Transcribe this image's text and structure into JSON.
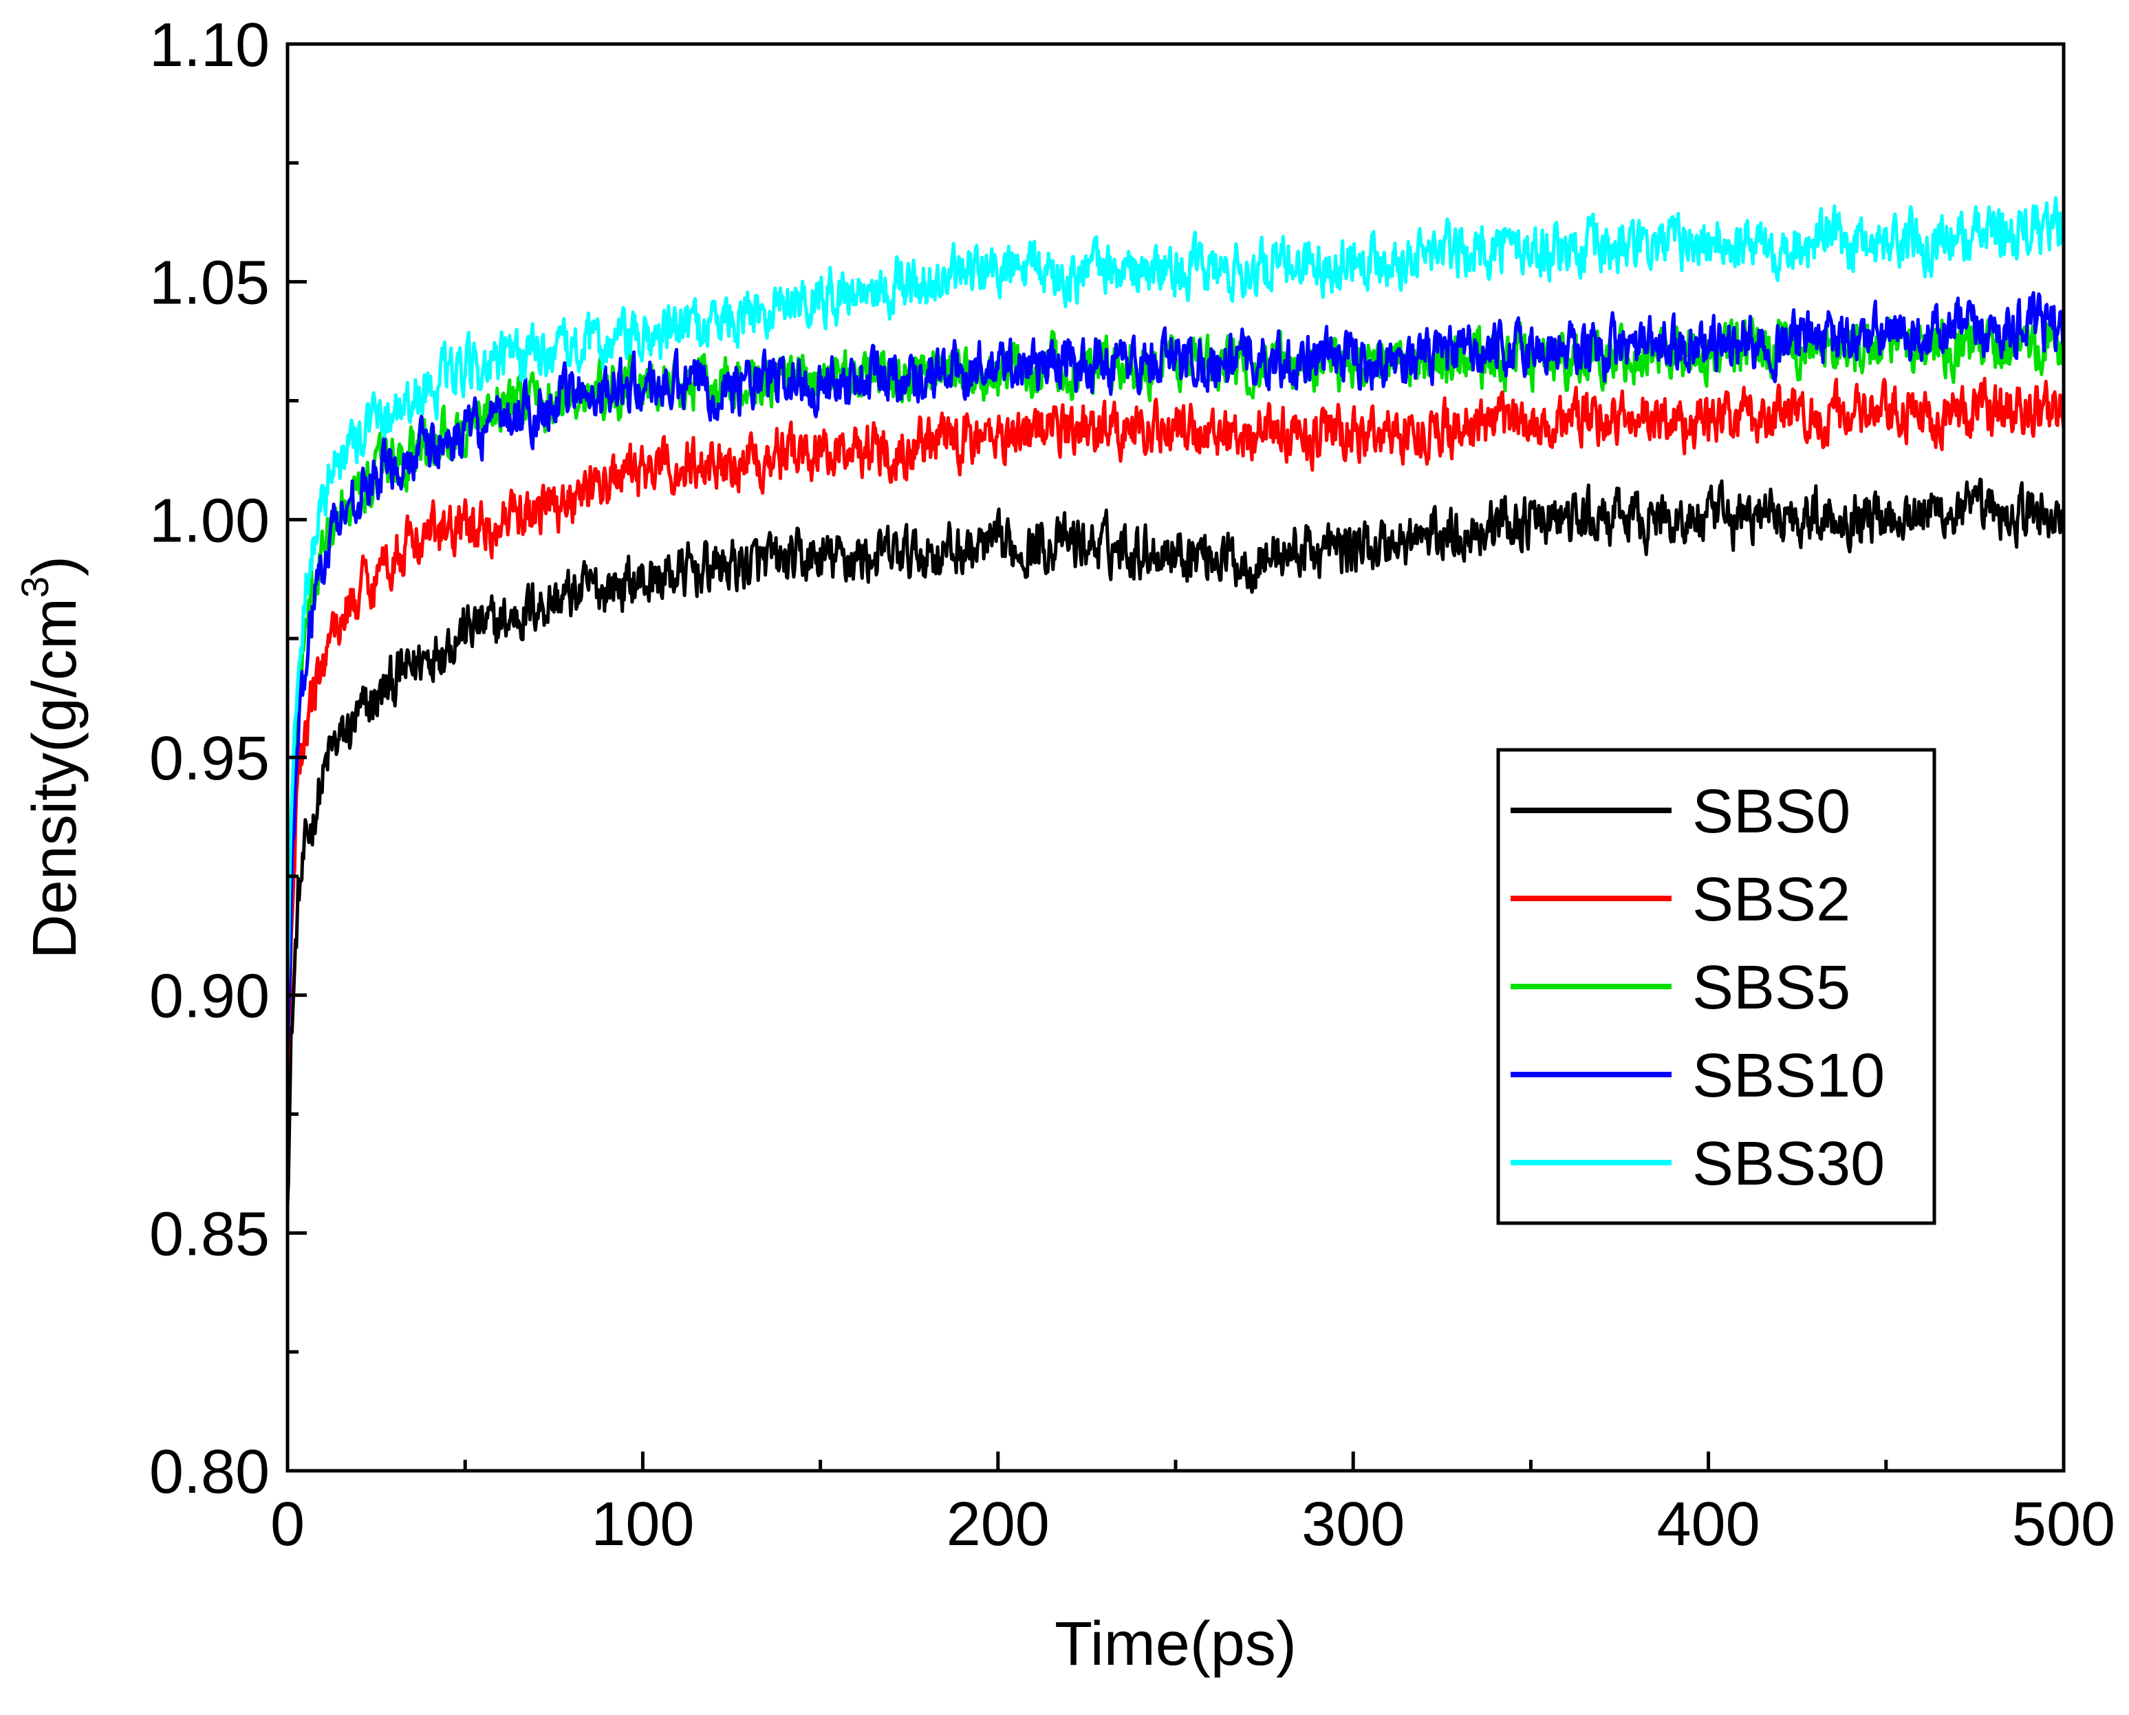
{
  "chart_data": {
    "type": "line",
    "xlabel": "Time(ps)",
    "ylabel": {
      "text": "Density(g/cm",
      "sup": "3",
      "close": ")"
    },
    "xlim": [
      0,
      500
    ],
    "ylim": [
      0.8,
      1.1
    ],
    "xticks": [
      0,
      100,
      200,
      300,
      400,
      500
    ],
    "xtick_labels": [
      "0",
      "100",
      "200",
      "300",
      "400",
      "500"
    ],
    "yticks": [
      0.8,
      0.85,
      0.9,
      0.95,
      1.0,
      1.05,
      1.1
    ],
    "ytick_labels": [
      "0.80",
      "0.85",
      "0.90",
      "0.95",
      "1.00",
      "1.05",
      "1.10"
    ],
    "grid": false,
    "legend_position": "center-right",
    "series": [
      {
        "name": "SBS0",
        "color": "#000000",
        "noise": 0.004,
        "x": [
          0,
          1,
          2,
          3,
          5,
          8,
          12,
          20,
          30,
          40,
          50,
          60,
          70,
          80,
          90,
          100,
          120,
          140,
          160,
          180,
          200,
          220,
          240,
          260,
          270,
          280,
          300,
          320,
          340,
          360,
          380,
          400,
          420,
          440,
          460,
          480,
          500
        ],
        "y": [
          0.86,
          0.89,
          0.905,
          0.92,
          0.93,
          0.94,
          0.951,
          0.958,
          0.966,
          0.972,
          0.977,
          0.978,
          0.982,
          0.984,
          0.986,
          0.987,
          0.99,
          0.991,
          0.992,
          0.993,
          0.994,
          0.995,
          0.994,
          0.993,
          0.991,
          0.993,
          0.994,
          0.996,
          0.999,
          1.0,
          1.0,
          1.0,
          1.001,
          1.001,
          1.002,
          1.001,
          1.001
        ]
      },
      {
        "name": "SBS2",
        "color": "#ff0000",
        "noise": 0.004,
        "x": [
          0,
          1,
          2,
          3,
          5,
          8,
          12,
          20,
          30,
          40,
          50,
          60,
          70,
          80,
          90,
          100,
          120,
          140,
          160,
          180,
          200,
          220,
          240,
          260,
          280,
          300,
          320,
          340,
          360,
          380,
          400,
          420,
          440,
          460,
          480,
          500
        ],
        "y": [
          0.88,
          0.91,
          0.93,
          0.945,
          0.955,
          0.965,
          0.975,
          0.985,
          0.993,
          0.997,
          0.998,
          0.999,
          1.002,
          1.005,
          1.008,
          1.01,
          1.012,
          1.014,
          1.015,
          1.016,
          1.018,
          1.019,
          1.019,
          1.019,
          1.018,
          1.018,
          1.019,
          1.02,
          1.021,
          1.021,
          1.021,
          1.022,
          1.022,
          1.022,
          1.023,
          1.023
        ]
      },
      {
        "name": "SBS5",
        "color": "#00e000",
        "noise": 0.004,
        "x": [
          0,
          1,
          2,
          3,
          5,
          8,
          12,
          20,
          30,
          40,
          50,
          60,
          70,
          80,
          90,
          100,
          120,
          140,
          160,
          180,
          200,
          220,
          240,
          260,
          280,
          300,
          320,
          340,
          360,
          380,
          400,
          420,
          440,
          460,
          480,
          500
        ],
        "y": [
          0.89,
          0.925,
          0.945,
          0.96,
          0.975,
          0.988,
          0.998,
          1.006,
          1.012,
          1.016,
          1.02,
          1.024,
          1.025,
          1.026,
          1.027,
          1.028,
          1.028,
          1.029,
          1.03,
          1.031,
          1.031,
          1.032,
          1.033,
          1.033,
          1.033,
          1.033,
          1.033,
          1.034,
          1.034,
          1.035,
          1.035,
          1.036,
          1.036,
          1.037,
          1.037,
          1.037
        ]
      },
      {
        "name": "SBS10",
        "color": "#0000ff",
        "noise": 0.004,
        "x": [
          0,
          1,
          2,
          3,
          5,
          8,
          12,
          20,
          30,
          40,
          50,
          60,
          70,
          80,
          90,
          100,
          120,
          140,
          160,
          180,
          200,
          220,
          240,
          260,
          280,
          300,
          320,
          340,
          360,
          380,
          400,
          420,
          440,
          460,
          480,
          500
        ],
        "y": [
          0.885,
          0.92,
          0.94,
          0.955,
          0.97,
          0.985,
          0.998,
          1.006,
          1.012,
          1.015,
          1.018,
          1.02,
          1.023,
          1.026,
          1.028,
          1.028,
          1.028,
          1.029,
          1.03,
          1.031,
          1.032,
          1.033,
          1.033,
          1.034,
          1.034,
          1.034,
          1.034,
          1.035,
          1.036,
          1.036,
          1.037,
          1.038,
          1.038,
          1.039,
          1.04,
          1.041
        ]
      },
      {
        "name": "SBS30",
        "color": "#00ffff",
        "noise": 0.004,
        "x": [
          0,
          1,
          2,
          3,
          5,
          8,
          12,
          20,
          30,
          40,
          50,
          60,
          70,
          80,
          90,
          100,
          120,
          140,
          160,
          180,
          200,
          220,
          240,
          260,
          280,
          300,
          320,
          340,
          360,
          380,
          400,
          420,
          440,
          460,
          480,
          500
        ],
        "y": [
          0.9,
          0.935,
          0.955,
          0.97,
          0.985,
          0.998,
          1.01,
          1.018,
          1.024,
          1.028,
          1.031,
          1.033,
          1.035,
          1.036,
          1.037,
          1.038,
          1.042,
          1.046,
          1.048,
          1.05,
          1.052,
          1.052,
          1.052,
          1.052,
          1.053,
          1.055,
          1.056,
          1.057,
          1.057,
          1.057,
          1.058,
          1.058,
          1.059,
          1.059,
          1.06,
          1.061
        ]
      }
    ]
  }
}
